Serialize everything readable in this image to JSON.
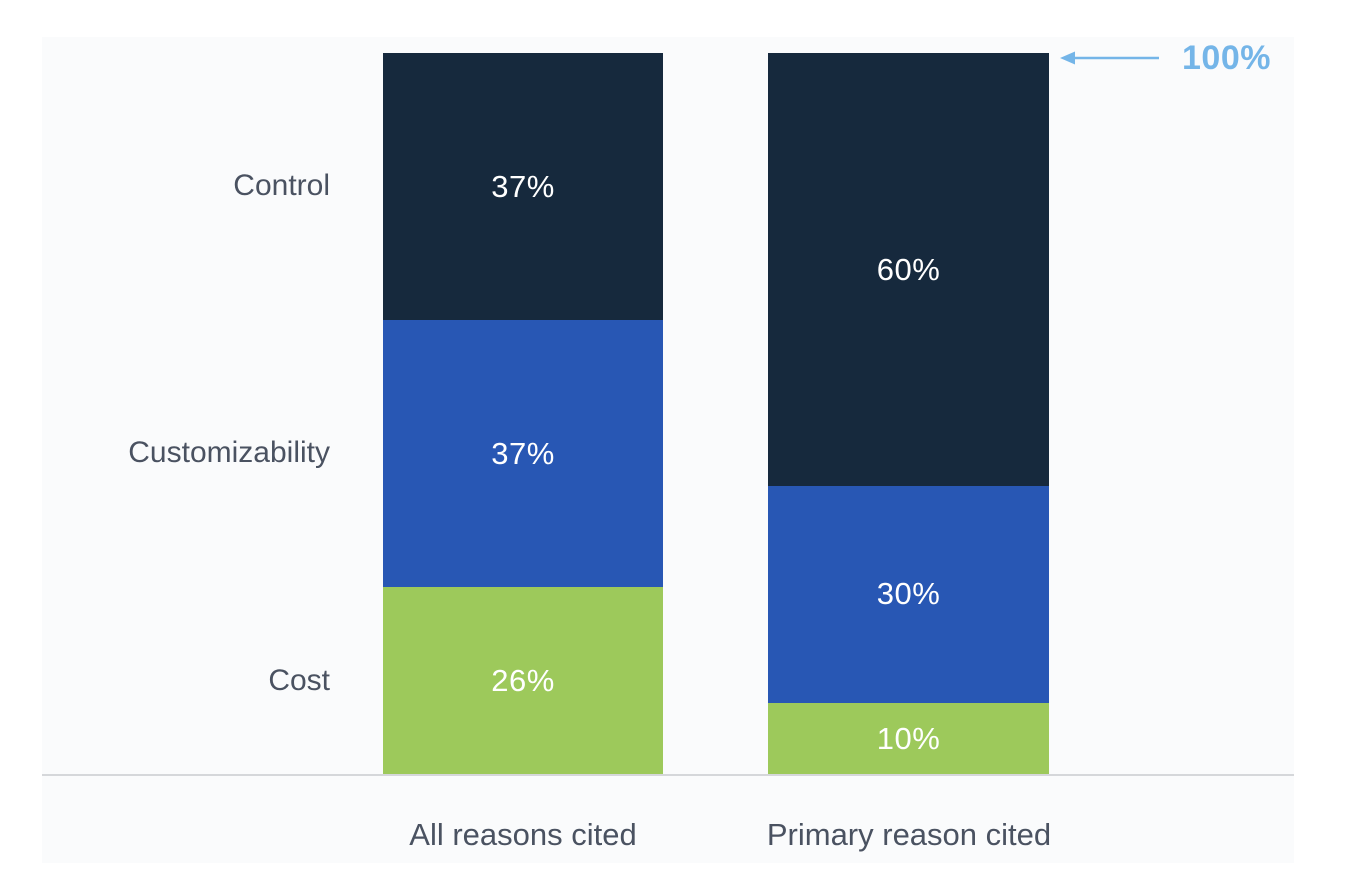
{
  "chart_data": {
    "type": "bar",
    "stacked": true,
    "orientation": "vertical",
    "title": "",
    "xlabel": "",
    "ylabel": "",
    "ylim": [
      0,
      100
    ],
    "grid": false,
    "categories": [
      "All reasons cited",
      "Primary reason cited"
    ],
    "series": [
      {
        "name": "Control",
        "values": [
          37,
          60
        ],
        "display_values": [
          "37%",
          "60%"
        ],
        "color": "#16293D"
      },
      {
        "name": "Customizability",
        "values": [
          37,
          30
        ],
        "display_values": [
          "37%",
          "30%"
        ],
        "color": "#2857B4"
      },
      {
        "name": "Cost",
        "values": [
          26,
          10
        ],
        "display_values": [
          "26%",
          "10%"
        ],
        "color": "#9DC95B"
      }
    ],
    "value_suffix": "%",
    "legend_position": "left-of-first-bar",
    "annotation": {
      "text": "100%",
      "color": "#74B5E8",
      "arrow": "left"
    }
  },
  "colors": {
    "axis_text": "#4A5261",
    "value_text": "#FFFFFF",
    "baseline": "#D5D7DA",
    "panel_background": "#FAFBFC",
    "page_background": "#FFFFFF"
  }
}
